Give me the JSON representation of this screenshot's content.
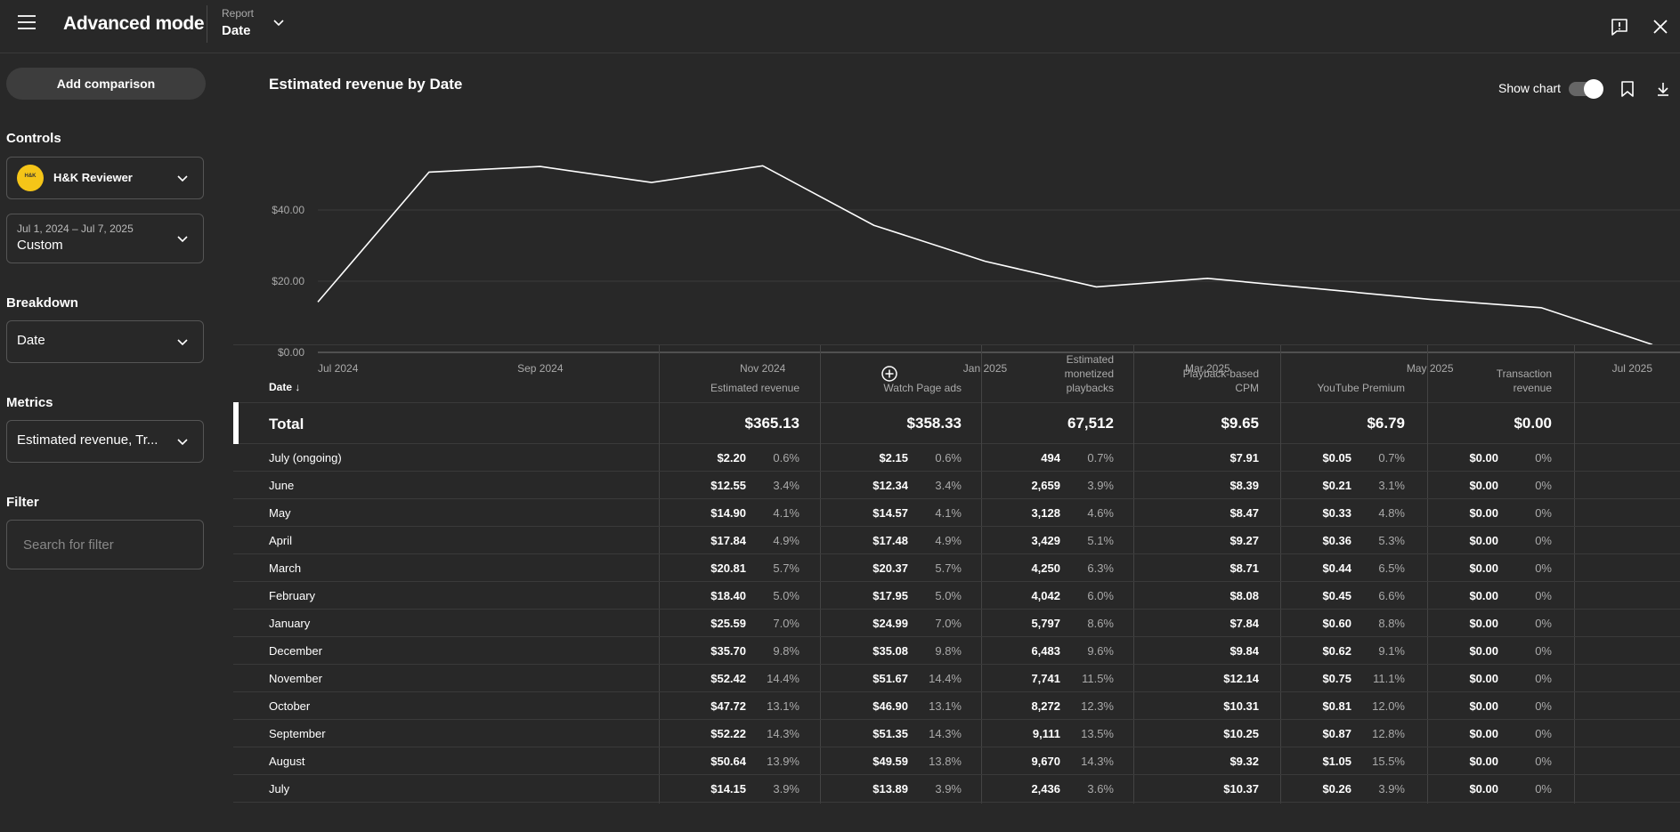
{
  "header": {
    "title": "Advanced mode",
    "report_label": "Report",
    "report_value": "Date",
    "icons": [
      "menu-icon",
      "chevron-down-icon",
      "feedback-icon",
      "close-icon"
    ]
  },
  "sidebar": {
    "add_comparison": "Add comparison",
    "controls_label": "Controls",
    "channel_name": "H&K Reviewer",
    "channel_avatar_text": "H&K",
    "date_range": "Jul 1, 2024 – Jul 7, 2025",
    "date_preset": "Custom",
    "breakdown_label": "Breakdown",
    "breakdown_value": "Date",
    "metrics_label": "Metrics",
    "metrics_value": "Estimated revenue, Tr...",
    "filter_label": "Filter",
    "filter_placeholder": "Search for filter"
  },
  "chart": {
    "title": "Estimated revenue by Date",
    "show_chart_label": "Show chart",
    "show_chart_on": true
  },
  "chart_data": {
    "type": "line",
    "x": [
      "Jul 2024",
      "Aug 2024",
      "Sep 2024",
      "Oct 2024",
      "Nov 2024",
      "Dec 2024",
      "Jan 2025",
      "Feb 2025",
      "Mar 2025",
      "Apr 2025",
      "May 2025",
      "Jun 2025",
      "Jul 2025"
    ],
    "values": [
      14.15,
      50.64,
      52.22,
      47.72,
      52.42,
      35.7,
      25.59,
      18.4,
      20.81,
      17.84,
      14.9,
      12.55,
      2.2
    ],
    "x_tick_labels": [
      "Jul 2024",
      "Sep 2024",
      "Nov 2024",
      "Jan 2025",
      "Mar 2025",
      "May 2025",
      "Jul 2025"
    ],
    "y_tick_labels": [
      "$0.00",
      "$20.00",
      "$40.00"
    ],
    "ylim": [
      0,
      50
    ],
    "line_color": "#ffffff",
    "grid": true
  },
  "table": {
    "sort_column_label": "Date",
    "columns": [
      {
        "key": "rev",
        "label_lines": [
          "Estimated revenue"
        ],
        "total": "$365.13"
      },
      {
        "key": "wpa",
        "label_lines": [
          "Watch Page ads"
        ],
        "total": "$358.33"
      },
      {
        "key": "emp",
        "label_lines": [
          "Estimated",
          "monetized",
          "playbacks"
        ],
        "total": "67,512"
      },
      {
        "key": "cpm",
        "label_lines": [
          "Playback-based",
          "CPM"
        ],
        "total": "$9.65"
      },
      {
        "key": "ytp",
        "label_lines": [
          "YouTube Premium"
        ],
        "total": "$6.79"
      },
      {
        "key": "trx",
        "label_lines": [
          "Transaction",
          "revenue"
        ],
        "total": "$0.00"
      }
    ],
    "total_label": "Total",
    "rows": [
      {
        "label": "July (ongoing)",
        "rev": "$2.20",
        "rev_pct": "0.6%",
        "wpa": "$2.15",
        "wpa_pct": "0.6%",
        "emp": "494",
        "emp_pct": "0.7%",
        "cpm": "$7.91",
        "ytp": "$0.05",
        "ytp_pct": "0.7%",
        "trx": "$0.00",
        "trx_pct": "0%"
      },
      {
        "label": "June",
        "rev": "$12.55",
        "rev_pct": "3.4%",
        "wpa": "$12.34",
        "wpa_pct": "3.4%",
        "emp": "2,659",
        "emp_pct": "3.9%",
        "cpm": "$8.39",
        "ytp": "$0.21",
        "ytp_pct": "3.1%",
        "trx": "$0.00",
        "trx_pct": "0%"
      },
      {
        "label": "May",
        "rev": "$14.90",
        "rev_pct": "4.1%",
        "wpa": "$14.57",
        "wpa_pct": "4.1%",
        "emp": "3,128",
        "emp_pct": "4.6%",
        "cpm": "$8.47",
        "ytp": "$0.33",
        "ytp_pct": "4.8%",
        "trx": "$0.00",
        "trx_pct": "0%"
      },
      {
        "label": "April",
        "rev": "$17.84",
        "rev_pct": "4.9%",
        "wpa": "$17.48",
        "wpa_pct": "4.9%",
        "emp": "3,429",
        "emp_pct": "5.1%",
        "cpm": "$9.27",
        "ytp": "$0.36",
        "ytp_pct": "5.3%",
        "trx": "$0.00",
        "trx_pct": "0%"
      },
      {
        "label": "March",
        "rev": "$20.81",
        "rev_pct": "5.7%",
        "wpa": "$20.37",
        "wpa_pct": "5.7%",
        "emp": "4,250",
        "emp_pct": "6.3%",
        "cpm": "$8.71",
        "ytp": "$0.44",
        "ytp_pct": "6.5%",
        "trx": "$0.00",
        "trx_pct": "0%"
      },
      {
        "label": "February",
        "rev": "$18.40",
        "rev_pct": "5.0%",
        "wpa": "$17.95",
        "wpa_pct": "5.0%",
        "emp": "4,042",
        "emp_pct": "6.0%",
        "cpm": "$8.08",
        "ytp": "$0.45",
        "ytp_pct": "6.6%",
        "trx": "$0.00",
        "trx_pct": "0%"
      },
      {
        "label": "January",
        "rev": "$25.59",
        "rev_pct": "7.0%",
        "wpa": "$24.99",
        "wpa_pct": "7.0%",
        "emp": "5,797",
        "emp_pct": "8.6%",
        "cpm": "$7.84",
        "ytp": "$0.60",
        "ytp_pct": "8.8%",
        "trx": "$0.00",
        "trx_pct": "0%"
      },
      {
        "label": "December",
        "rev": "$35.70",
        "rev_pct": "9.8%",
        "wpa": "$35.08",
        "wpa_pct": "9.8%",
        "emp": "6,483",
        "emp_pct": "9.6%",
        "cpm": "$9.84",
        "ytp": "$0.62",
        "ytp_pct": "9.1%",
        "trx": "$0.00",
        "trx_pct": "0%"
      },
      {
        "label": "November",
        "rev": "$52.42",
        "rev_pct": "14.4%",
        "wpa": "$51.67",
        "wpa_pct": "14.4%",
        "emp": "7,741",
        "emp_pct": "11.5%",
        "cpm": "$12.14",
        "ytp": "$0.75",
        "ytp_pct": "11.1%",
        "trx": "$0.00",
        "trx_pct": "0%"
      },
      {
        "label": "October",
        "rev": "$47.72",
        "rev_pct": "13.1%",
        "wpa": "$46.90",
        "wpa_pct": "13.1%",
        "emp": "8,272",
        "emp_pct": "12.3%",
        "cpm": "$10.31",
        "ytp": "$0.81",
        "ytp_pct": "12.0%",
        "trx": "$0.00",
        "trx_pct": "0%"
      },
      {
        "label": "September",
        "rev": "$52.22",
        "rev_pct": "14.3%",
        "wpa": "$51.35",
        "wpa_pct": "14.3%",
        "emp": "9,111",
        "emp_pct": "13.5%",
        "cpm": "$10.25",
        "ytp": "$0.87",
        "ytp_pct": "12.8%",
        "trx": "$0.00",
        "trx_pct": "0%"
      },
      {
        "label": "August",
        "rev": "$50.64",
        "rev_pct": "13.9%",
        "wpa": "$49.59",
        "wpa_pct": "13.8%",
        "emp": "9,670",
        "emp_pct": "14.3%",
        "cpm": "$9.32",
        "ytp": "$1.05",
        "ytp_pct": "15.5%",
        "trx": "$0.00",
        "trx_pct": "0%"
      },
      {
        "label": "July",
        "rev": "$14.15",
        "rev_pct": "3.9%",
        "wpa": "$13.89",
        "wpa_pct": "3.9%",
        "emp": "2,436",
        "emp_pct": "3.6%",
        "cpm": "$10.37",
        "ytp": "$0.26",
        "ytp_pct": "3.9%",
        "trx": "$0.00",
        "trx_pct": "0%"
      }
    ]
  }
}
